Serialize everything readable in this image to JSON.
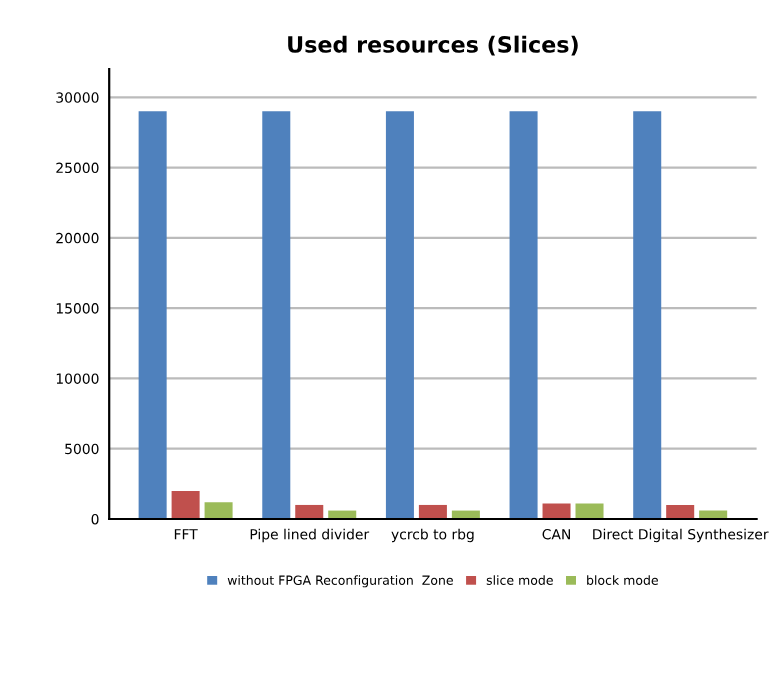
{
  "chart_data": {
    "type": "bar",
    "title": "Used resources (Slices)",
    "categories": [
      "FFT",
      "Pipe lined divider",
      "ycrcb to rbg",
      "CAN",
      "Direct Digital Synthesizer"
    ],
    "series": [
      {
        "name": "without FPGA Reconfiguration  Zone",
        "color": "#4f81bd",
        "values": [
          29000,
          29000,
          29000,
          29000,
          29000
        ]
      },
      {
        "name": "slice mode",
        "color": "#c0504d",
        "values": [
          2000,
          1000,
          1000,
          1100,
          1000
        ]
      },
      {
        "name": "block mode",
        "color": "#9bbb59",
        "values": [
          1200,
          600,
          600,
          1100,
          600
        ]
      }
    ],
    "ylim": [
      0,
      32000
    ],
    "yticks": [
      0,
      5000,
      10000,
      15000,
      20000,
      25000,
      30000
    ],
    "grid": "y",
    "legend": "bottom"
  }
}
